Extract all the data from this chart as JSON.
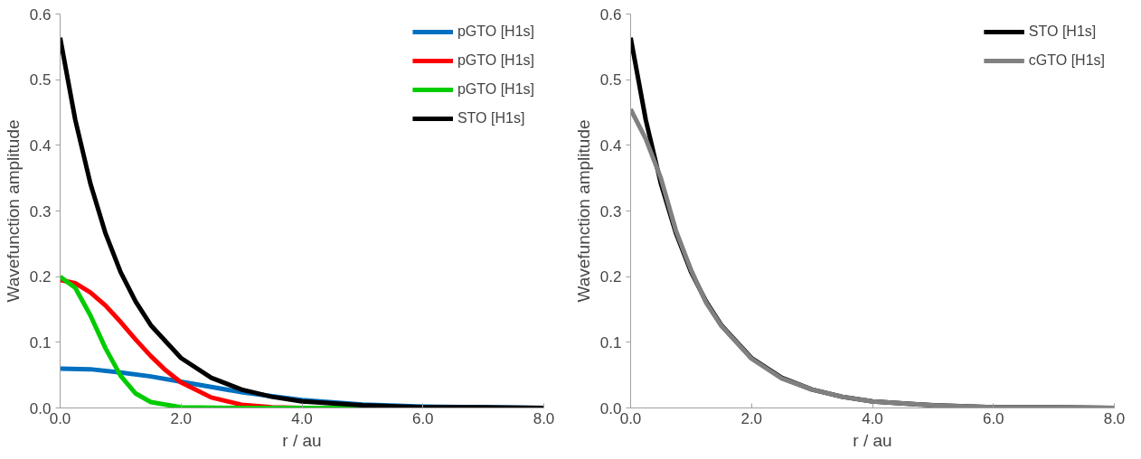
{
  "chart_data": [
    {
      "type": "line",
      "xlabel": "r / au",
      "ylabel": "Wavefunction amplitude",
      "xlim": [
        0,
        8
      ],
      "ylim": [
        0,
        0.6
      ],
      "xticks": [
        {
          "value": 0,
          "label": "0.0"
        },
        {
          "value": 2,
          "label": "2.0"
        },
        {
          "value": 4,
          "label": "4.0"
        },
        {
          "value": 6,
          "label": "6.0"
        },
        {
          "value": 8,
          "label": "8.0"
        }
      ],
      "yticks": [
        {
          "value": 0,
          "label": "0.0"
        },
        {
          "value": 0.1,
          "label": "0.1"
        },
        {
          "value": 0.2,
          "label": "0.2"
        },
        {
          "value": 0.3,
          "label": "0.3"
        },
        {
          "value": 0.4,
          "label": "0.4"
        },
        {
          "value": 0.5,
          "label": "0.5"
        },
        {
          "value": 0.6,
          "label": "0.6"
        }
      ],
      "grid": false,
      "legend": "top right",
      "marker": "none",
      "line_style": "solid",
      "series": [
        {
          "name": "pGTO [H1s]",
          "color": "#0070c0",
          "x": [
            0,
            0.5,
            1,
            1.5,
            2,
            2.5,
            3,
            3.5,
            4,
            5,
            6,
            8
          ],
          "values": [
            0.06,
            0.059,
            0.054,
            0.048,
            0.04,
            0.032,
            0.024,
            0.018,
            0.012,
            0.005,
            0.002,
            0.0
          ]
        },
        {
          "name": "pGTO [H1s]",
          "color": "#ff0000",
          "x": [
            0,
            0.25,
            0.5,
            0.75,
            1,
            1.25,
            1.5,
            1.75,
            2,
            2.5,
            3,
            3.5,
            4,
            5,
            8
          ],
          "values": [
            0.195,
            0.19,
            0.176,
            0.156,
            0.131,
            0.104,
            0.079,
            0.057,
            0.039,
            0.016,
            0.005,
            0.001,
            0.0,
            0.0,
            0.0
          ]
        },
        {
          "name": "pGTO [H1s]",
          "color": "#00cc00",
          "x": [
            0,
            0.25,
            0.5,
            0.75,
            1,
            1.25,
            1.5,
            2,
            3,
            8
          ],
          "values": [
            0.2,
            0.183,
            0.141,
            0.091,
            0.049,
            0.022,
            0.009,
            0.001,
            0.0,
            0.0
          ]
        },
        {
          "name": "STO [H1s]",
          "color": "#000000",
          "x": [
            0,
            0.25,
            0.5,
            0.75,
            1,
            1.25,
            1.5,
            2,
            2.5,
            3,
            3.5,
            4,
            5,
            6,
            7,
            8
          ],
          "values": [
            0.564,
            0.439,
            0.342,
            0.266,
            0.207,
            0.162,
            0.126,
            0.076,
            0.046,
            0.028,
            0.017,
            0.01,
            0.004,
            0.001,
            0.001,
            0.0
          ]
        }
      ]
    },
    {
      "type": "line",
      "xlabel": "r / au",
      "ylabel": "Wavefunction amplitude",
      "xlim": [
        0,
        8
      ],
      "ylim": [
        0,
        0.6
      ],
      "xticks": [
        {
          "value": 0,
          "label": "0.0"
        },
        {
          "value": 2,
          "label": "2.0"
        },
        {
          "value": 4,
          "label": "4.0"
        },
        {
          "value": 6,
          "label": "6.0"
        },
        {
          "value": 8,
          "label": "8.0"
        }
      ],
      "yticks": [
        {
          "value": 0,
          "label": "0.0"
        },
        {
          "value": 0.1,
          "label": "0.1"
        },
        {
          "value": 0.2,
          "label": "0.2"
        },
        {
          "value": 0.3,
          "label": "0.3"
        },
        {
          "value": 0.4,
          "label": "0.4"
        },
        {
          "value": 0.5,
          "label": "0.5"
        },
        {
          "value": 0.6,
          "label": "0.6"
        }
      ],
      "grid": false,
      "legend": "top right",
      "marker": "none",
      "line_style": "solid",
      "series": [
        {
          "name": "STO [H1s]",
          "color": "#000000",
          "x": [
            0,
            0.25,
            0.5,
            0.75,
            1,
            1.25,
            1.5,
            2,
            2.5,
            3,
            3.5,
            4,
            5,
            6,
            7,
            8
          ],
          "values": [
            0.564,
            0.439,
            0.342,
            0.266,
            0.207,
            0.162,
            0.126,
            0.076,
            0.046,
            0.028,
            0.017,
            0.01,
            0.004,
            0.001,
            0.001,
            0.0
          ]
        },
        {
          "name": "cGTO [H1s]",
          "color": "#808080",
          "x": [
            0,
            0.25,
            0.5,
            0.75,
            1,
            1.25,
            1.5,
            2,
            2.5,
            3,
            3.5,
            4,
            5,
            6,
            7,
            8
          ],
          "values": [
            0.455,
            0.41,
            0.35,
            0.27,
            0.21,
            0.16,
            0.125,
            0.075,
            0.045,
            0.028,
            0.017,
            0.01,
            0.004,
            0.001,
            0.001,
            0.0
          ]
        }
      ]
    }
  ]
}
